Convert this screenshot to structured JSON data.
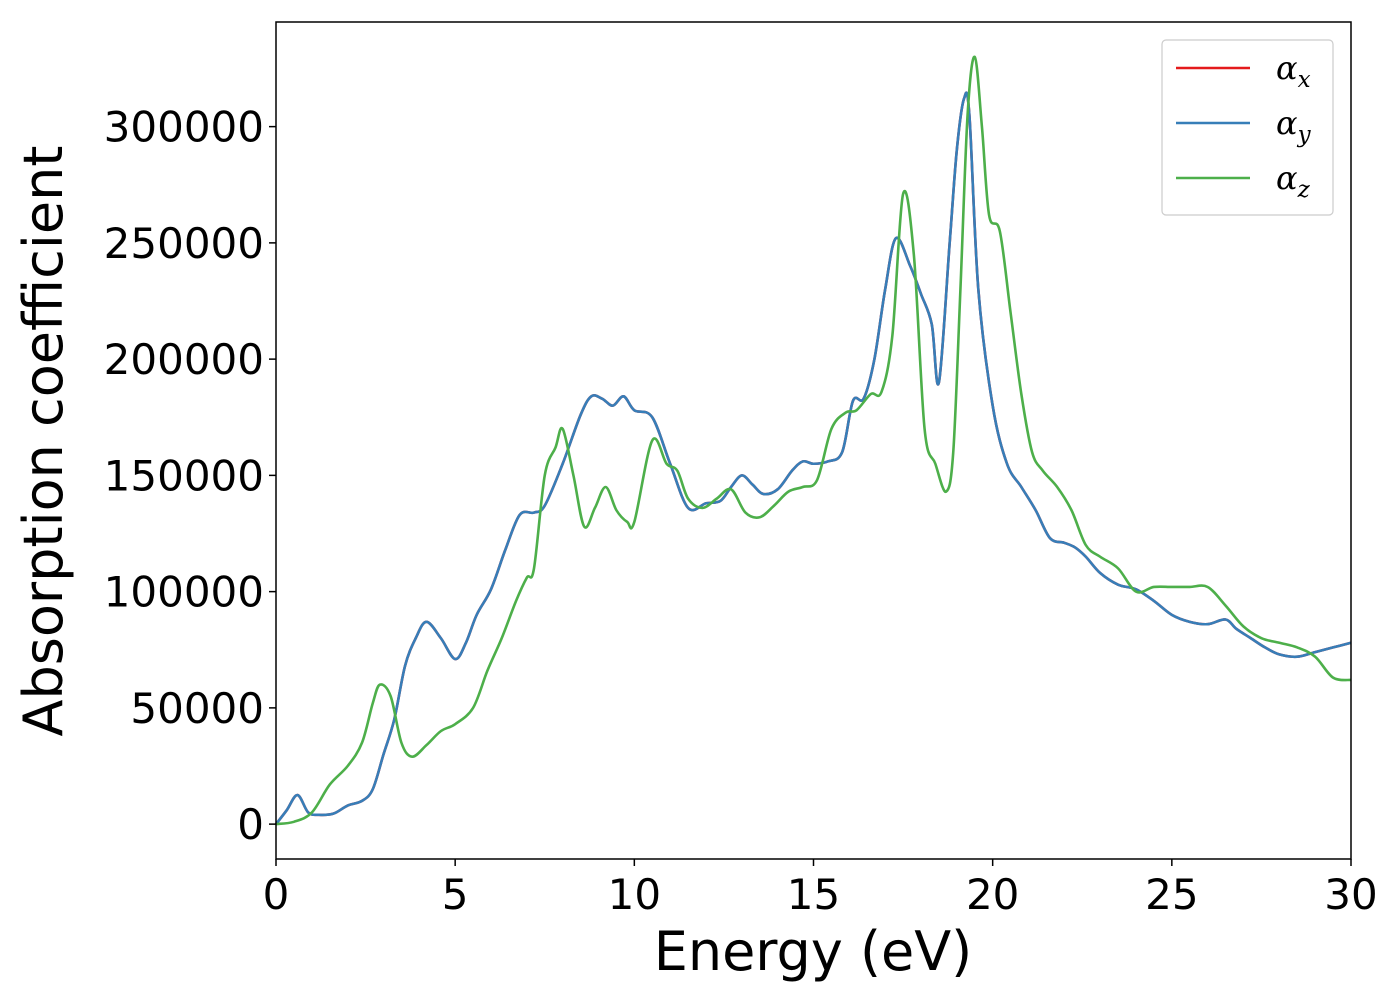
{
  "chart_data": {
    "type": "line",
    "xlabel": "Energy (eV)",
    "ylabel": "Absorption coefficient",
    "xlim": [
      0,
      30
    ],
    "ylim": [
      -15000,
      345000
    ],
    "xticks": [
      0,
      5,
      10,
      15,
      20,
      25,
      30
    ],
    "yticks": [
      0,
      50000,
      100000,
      150000,
      200000,
      250000,
      300000
    ],
    "grid": false,
    "legend_position": "top-right",
    "legend": [
      {
        "symbol": "α",
        "sub": "x",
        "color": "#e41a1c"
      },
      {
        "symbol": "α",
        "sub": "y",
        "color": "#377eb8"
      },
      {
        "symbol": "α",
        "sub": "z",
        "color": "#4daf4a"
      }
    ],
    "series": [
      {
        "name": "αx",
        "color": "#e41a1c",
        "x": [
          0,
          0.3,
          0.6,
          0.9,
          1.2,
          1.6,
          2.0,
          2.4,
          2.7,
          3.0,
          3.3,
          3.6,
          3.9,
          4.2,
          4.6,
          5.0,
          5.3,
          5.6,
          6.0,
          6.4,
          6.8,
          7.2,
          7.5,
          8.0,
          8.5,
          8.8,
          9.1,
          9.4,
          9.7,
          10.0,
          10.5,
          11.0,
          11.5,
          12.0,
          12.4,
          12.7,
          13.0,
          13.3,
          13.6,
          14.0,
          14.4,
          14.7,
          15.0,
          15.4,
          15.8,
          16.1,
          16.4,
          16.7,
          17.0,
          17.3,
          17.7,
          18.0,
          18.3,
          18.5,
          18.8,
          19.0,
          19.2,
          19.35,
          19.6,
          20.0,
          20.4,
          20.8,
          21.2,
          21.6,
          22.0,
          22.3,
          22.6,
          23.0,
          23.5,
          24.0,
          24.5,
          25.0,
          25.5,
          26.0,
          26.5,
          26.8,
          27.2,
          27.6,
          28.0,
          28.5,
          29.0,
          29.5,
          30.0
        ],
        "y": [
          0,
          6000,
          12500,
          5000,
          4000,
          4500,
          8000,
          10000,
          15000,
          30000,
          45000,
          68000,
          80000,
          87000,
          80000,
          71000,
          78000,
          90000,
          101000,
          118000,
          133000,
          134000,
          137000,
          155000,
          176000,
          184000,
          183000,
          180000,
          184000,
          178000,
          175000,
          155000,
          136000,
          138000,
          139000,
          145000,
          150000,
          146000,
          142000,
          144000,
          152000,
          156000,
          155000,
          156000,
          160000,
          182000,
          183000,
          200000,
          230000,
          252000,
          240000,
          228000,
          215000,
          190000,
          250000,
          290000,
          312000,
          305000,
          230000,
          180000,
          155000,
          145000,
          135000,
          123000,
          121000,
          119000,
          115000,
          108000,
          103000,
          101000,
          96000,
          90000,
          87000,
          86000,
          88000,
          84000,
          80000,
          76000,
          73000,
          72000,
          74000,
          76000,
          78000
        ]
      },
      {
        "name": "αy",
        "color": "#377eb8",
        "x": [
          0,
          0.3,
          0.6,
          0.9,
          1.2,
          1.6,
          2.0,
          2.4,
          2.7,
          3.0,
          3.3,
          3.6,
          3.9,
          4.2,
          4.6,
          5.0,
          5.3,
          5.6,
          6.0,
          6.4,
          6.8,
          7.2,
          7.5,
          8.0,
          8.5,
          8.8,
          9.1,
          9.4,
          9.7,
          10.0,
          10.5,
          11.0,
          11.5,
          12.0,
          12.4,
          12.7,
          13.0,
          13.3,
          13.6,
          14.0,
          14.4,
          14.7,
          15.0,
          15.4,
          15.8,
          16.1,
          16.4,
          16.7,
          17.0,
          17.3,
          17.7,
          18.0,
          18.3,
          18.5,
          18.8,
          19.0,
          19.2,
          19.35,
          19.6,
          20.0,
          20.4,
          20.8,
          21.2,
          21.6,
          22.0,
          22.3,
          22.6,
          23.0,
          23.5,
          24.0,
          24.5,
          25.0,
          25.5,
          26.0,
          26.5,
          26.8,
          27.2,
          27.6,
          28.0,
          28.5,
          29.0,
          29.5,
          30.0
        ],
        "y": [
          0,
          6000,
          12500,
          5000,
          4000,
          4500,
          8000,
          10000,
          15000,
          30000,
          45000,
          68000,
          80000,
          87000,
          80000,
          71000,
          78000,
          90000,
          101000,
          118000,
          133000,
          134000,
          137000,
          155000,
          176000,
          184000,
          183000,
          180000,
          184000,
          178000,
          175000,
          155000,
          136000,
          138000,
          139000,
          145000,
          150000,
          146000,
          142000,
          144000,
          152000,
          156000,
          155000,
          156000,
          160000,
          182000,
          183000,
          200000,
          230000,
          252000,
          240000,
          228000,
          215000,
          190000,
          250000,
          290000,
          312000,
          305000,
          230000,
          180000,
          155000,
          145000,
          135000,
          123000,
          121000,
          119000,
          115000,
          108000,
          103000,
          101000,
          96000,
          90000,
          87000,
          86000,
          88000,
          84000,
          80000,
          76000,
          73000,
          72000,
          74000,
          76000,
          78000
        ]
      },
      {
        "name": "αz",
        "color": "#4daf4a",
        "x": [
          0,
          0.5,
          1.0,
          1.5,
          2.0,
          2.4,
          2.7,
          2.9,
          3.2,
          3.5,
          3.8,
          4.2,
          4.6,
          5.0,
          5.5,
          5.9,
          6.3,
          6.7,
          7.0,
          7.2,
          7.5,
          7.8,
          8.0,
          8.3,
          8.6,
          8.9,
          9.2,
          9.5,
          9.8,
          10.0,
          10.5,
          10.9,
          11.2,
          11.5,
          11.9,
          12.3,
          12.7,
          13.1,
          13.5,
          13.9,
          14.3,
          14.7,
          15.1,
          15.5,
          15.9,
          16.2,
          16.6,
          16.9,
          17.2,
          17.5,
          17.8,
          18.1,
          18.4,
          18.7,
          18.9,
          19.1,
          19.3,
          19.5,
          19.7,
          19.9,
          20.2,
          20.5,
          20.8,
          21.1,
          21.4,
          21.8,
          22.2,
          22.6,
          23.0,
          23.5,
          24.0,
          24.5,
          25.0,
          25.5,
          26.0,
          26.5,
          27.0,
          27.5,
          28.0,
          28.5,
          29.0,
          29.5,
          30.0
        ],
        "y": [
          0,
          1000,
          5000,
          17000,
          25000,
          35000,
          52000,
          60000,
          55000,
          35000,
          29000,
          34000,
          40000,
          43000,
          50000,
          66000,
          80000,
          96000,
          106000,
          110000,
          150000,
          162000,
          170000,
          150000,
          128000,
          136000,
          145000,
          135000,
          130000,
          130000,
          165000,
          155000,
          152000,
          140000,
          136000,
          140000,
          144000,
          134000,
          132000,
          137000,
          143000,
          145000,
          148000,
          170000,
          177000,
          178000,
          185000,
          186000,
          210000,
          271000,
          245000,
          170000,
          155000,
          143000,
          160000,
          230000,
          305000,
          330000,
          300000,
          262000,
          255000,
          220000,
          185000,
          160000,
          152000,
          145000,
          135000,
          120000,
          115000,
          110000,
          100000,
          102000,
          102000,
          102000,
          102000,
          94000,
          85000,
          80000,
          78000,
          76000,
          72000,
          63000,
          62000
        ]
      }
    ]
  }
}
